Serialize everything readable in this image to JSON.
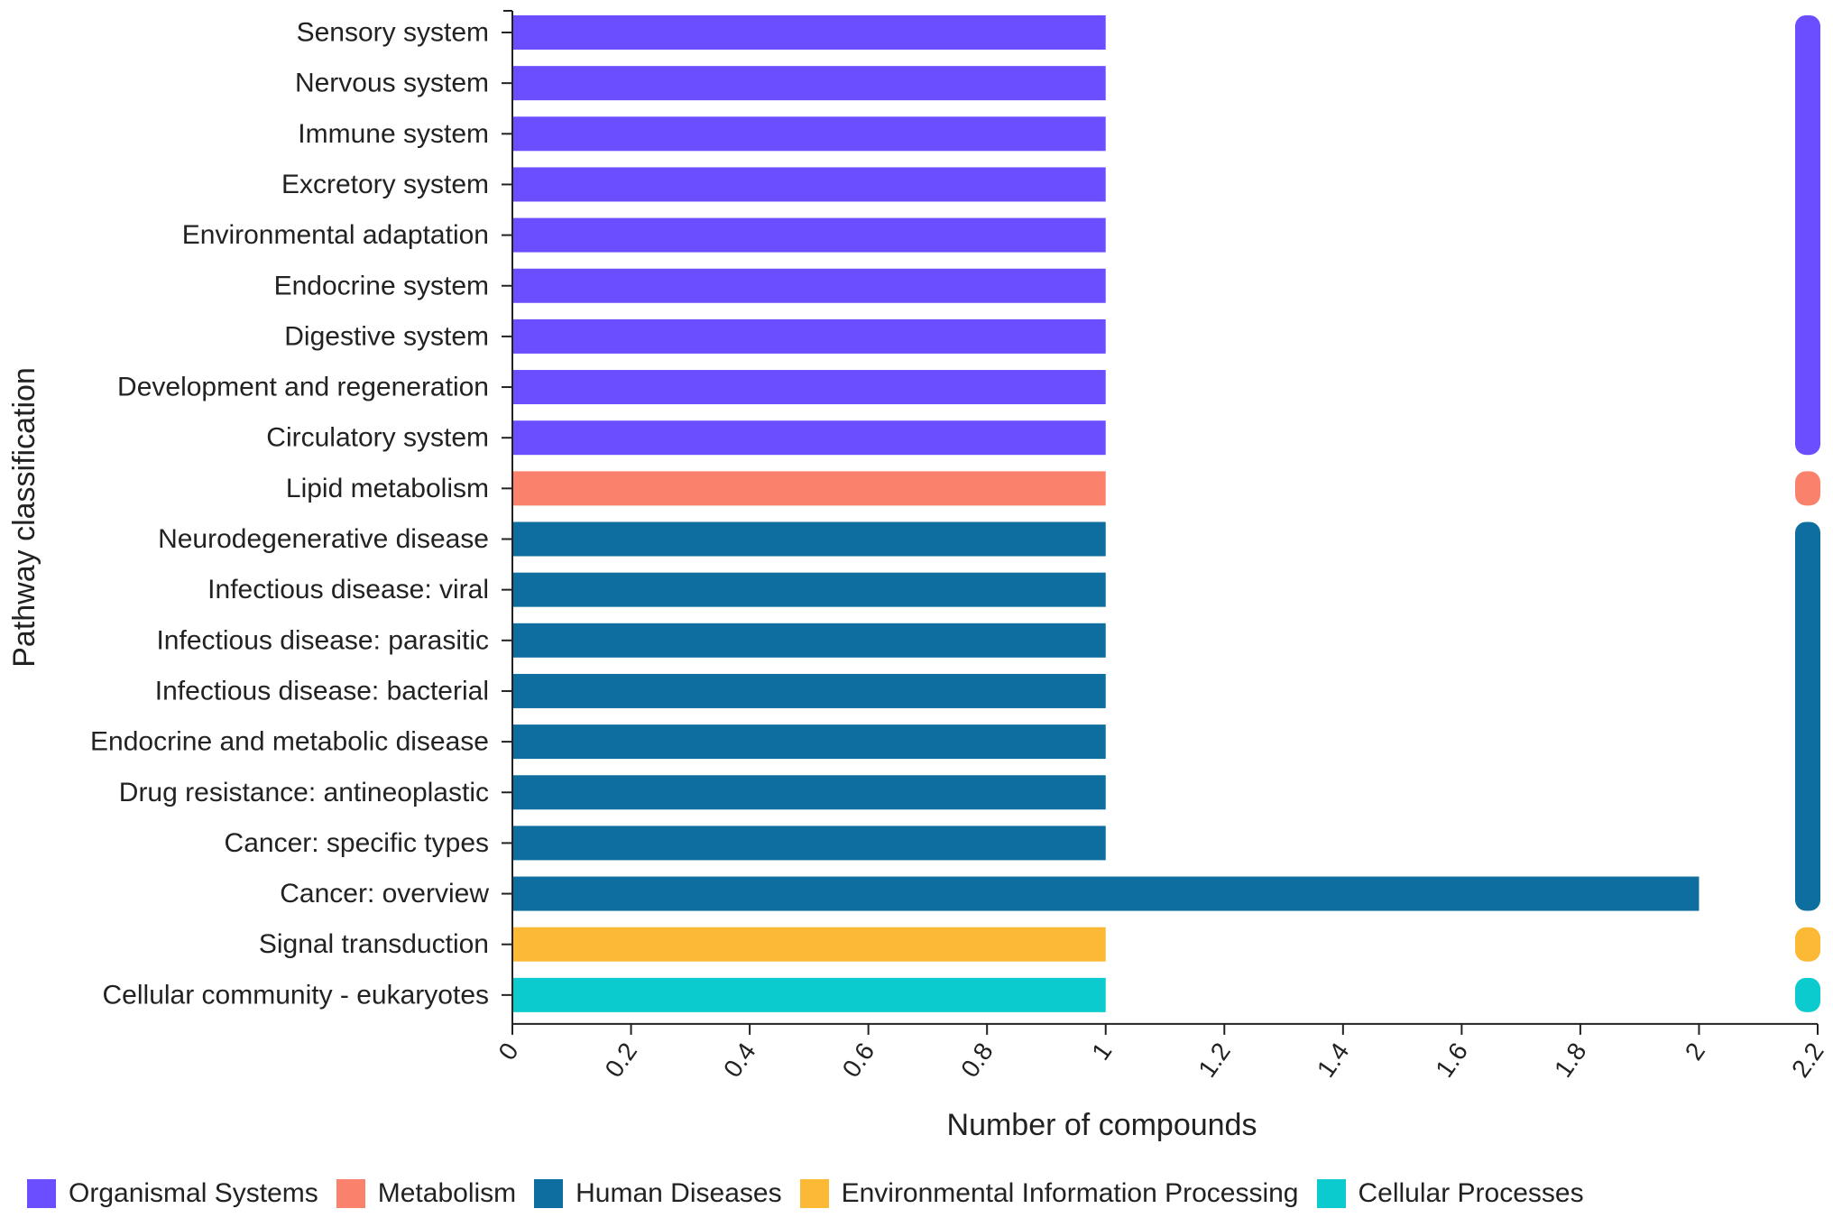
{
  "chart_data": {
    "type": "bar",
    "orientation": "horizontal",
    "xlabel": "Number of compounds",
    "ylabel": "Pathway classification",
    "xlim": [
      0,
      2.2
    ],
    "xticks": [
      "0",
      "0.2",
      "0.4",
      "0.6",
      "0.8",
      "1",
      "1.2",
      "1.4",
      "1.6",
      "1.8",
      "2",
      "2.2"
    ],
    "xtick_values": [
      0,
      0.2,
      0.4,
      0.6,
      0.8,
      1,
      1.2,
      1.4,
      1.6,
      1.8,
      2,
      2.2
    ],
    "categories": [
      "Sensory system",
      "Nervous system",
      "Immune system",
      "Excretory system",
      "Environmental adaptation",
      "Endocrine system",
      "Digestive system",
      "Development and regeneration",
      "Circulatory system",
      "Lipid metabolism",
      "Neurodegenerative disease",
      "Infectious disease: viral",
      "Infectious disease: parasitic",
      "Infectious disease: bacterial",
      "Endocrine and metabolic disease",
      "Drug resistance: antineoplastic",
      "Cancer: specific types",
      "Cancer: overview",
      "Signal transduction",
      "Cellular community - eukaryotes"
    ],
    "values": [
      1,
      1,
      1,
      1,
      1,
      1,
      1,
      1,
      1,
      1,
      1,
      1,
      1,
      1,
      1,
      1,
      1,
      2,
      1,
      1
    ],
    "groups": [
      "os",
      "os",
      "os",
      "os",
      "os",
      "os",
      "os",
      "os",
      "os",
      "met",
      "hd",
      "hd",
      "hd",
      "hd",
      "hd",
      "hd",
      "hd",
      "hd",
      "eip",
      "cp"
    ],
    "legend": [
      {
        "key": "os",
        "name": "Organismal Systems",
        "color": "#6B4EFF"
      },
      {
        "key": "met",
        "name": "Metabolism",
        "color": "#FA816C"
      },
      {
        "key": "hd",
        "name": "Human Diseases",
        "color": "#0E6E9F"
      },
      {
        "key": "eip",
        "name": "Environmental Information Processing",
        "color": "#FCB936"
      },
      {
        "key": "cp",
        "name": "Cellular Processes",
        "color": "#0BCBCE"
      }
    ],
    "legend_position": "bottom-left"
  }
}
